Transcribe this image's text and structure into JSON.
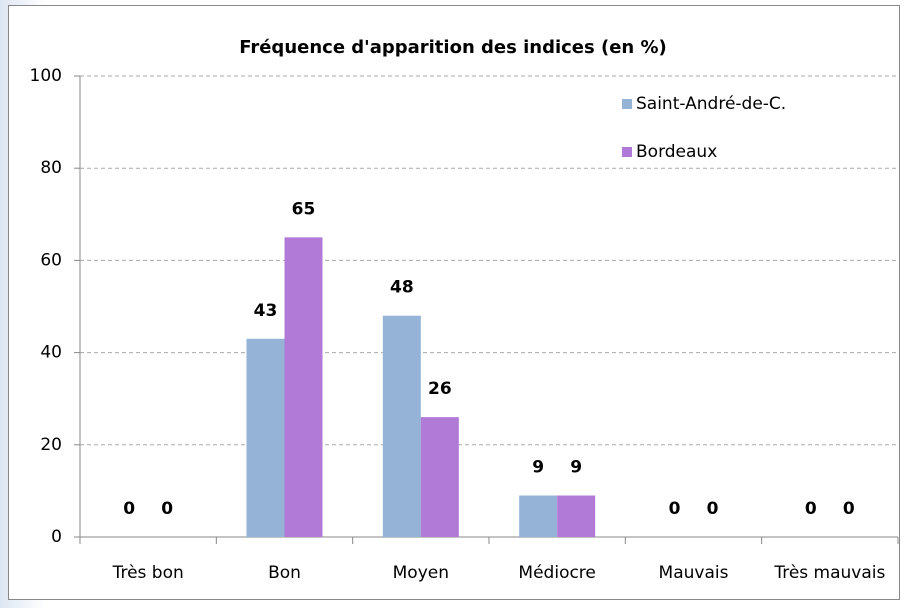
{
  "chart_data": {
    "type": "bar",
    "title": "Fréquence d'apparition des indices (en %)",
    "categories": [
      "Très bon",
      "Bon",
      "Moyen",
      "Médiocre",
      "Mauvais",
      "Très mauvais"
    ],
    "series": [
      {
        "name": "Saint-André-de-C.",
        "color": "#95b3d7",
        "values": [
          0,
          43,
          48,
          9,
          0,
          0
        ]
      },
      {
        "name": "Bordeaux",
        "color": "#b07ad6",
        "values": [
          0,
          65,
          26,
          9,
          0,
          0
        ]
      }
    ],
    "ylim": [
      0,
      100
    ],
    "yticks": [
      0,
      20,
      40,
      60,
      80,
      100
    ],
    "grid": true,
    "legend": "top-right"
  }
}
